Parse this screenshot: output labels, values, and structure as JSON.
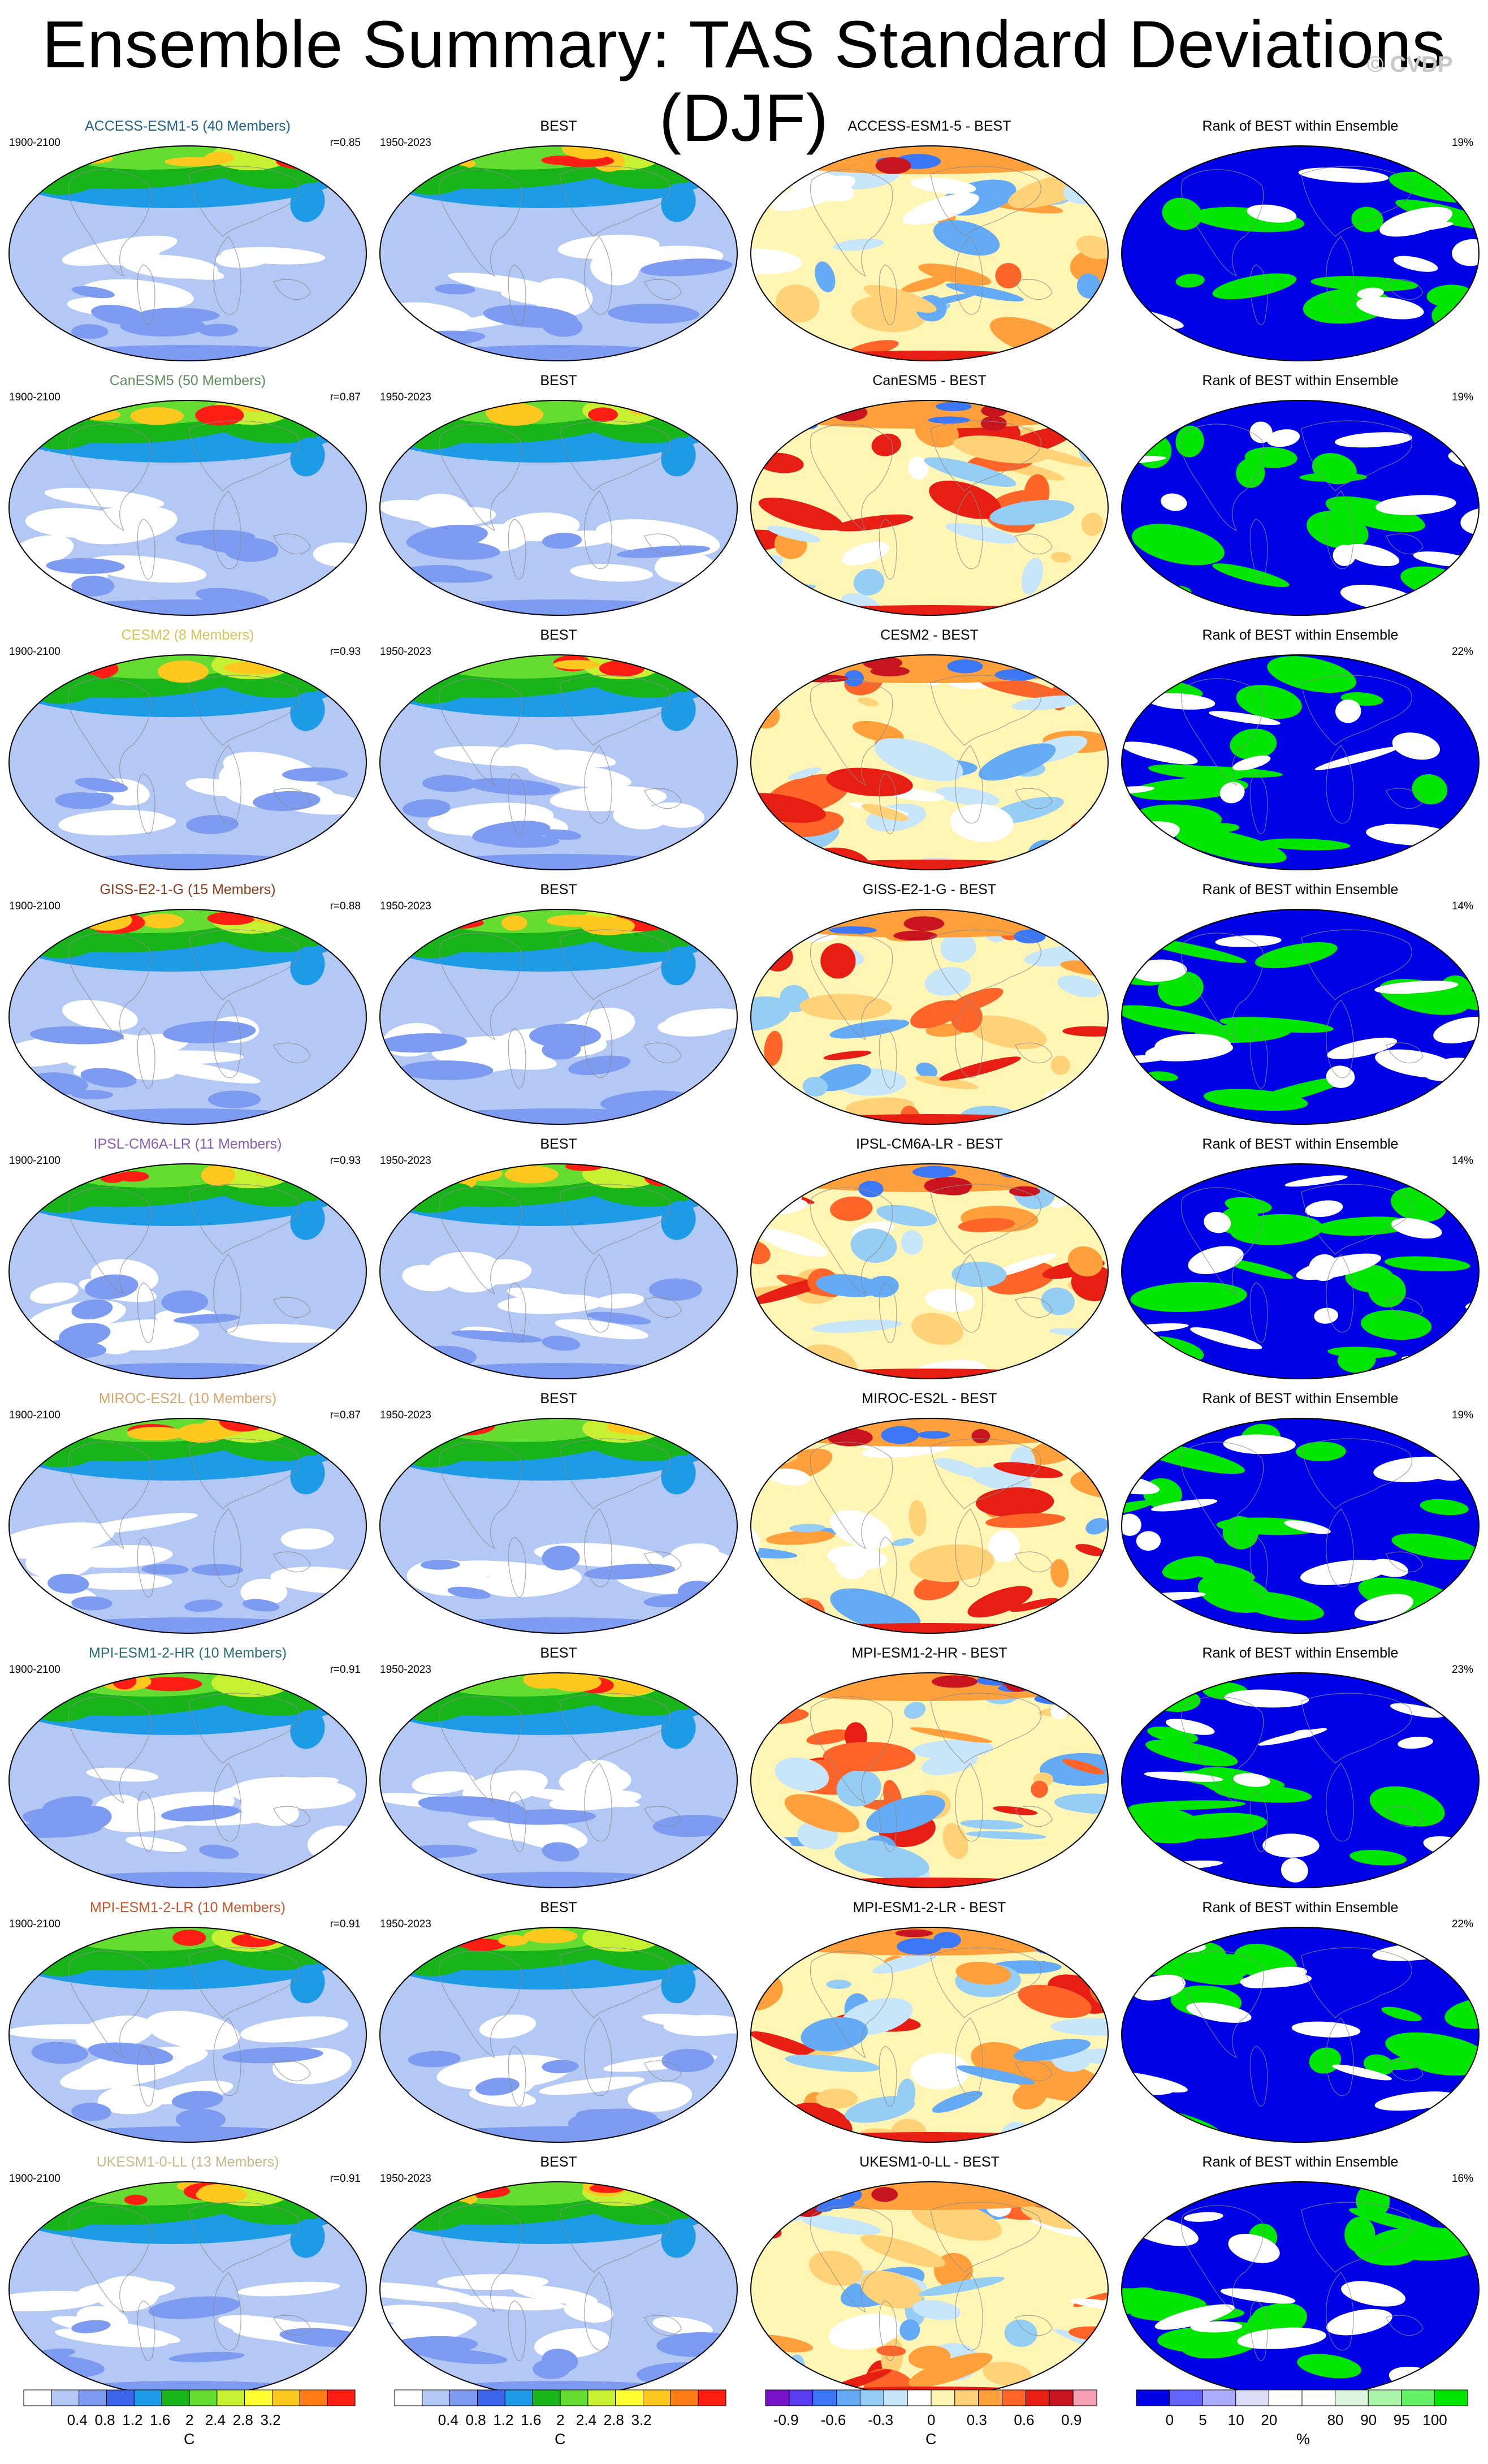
{
  "title": "Ensemble Summary: TAS Standard Deviations (DJF)",
  "copyright": "© CVDP",
  "column_titles": {
    "best": "BEST",
    "rank": "Rank of BEST within Ensemble",
    "diff_suffix": " - BEST"
  },
  "periods": {
    "model": "1900-2100",
    "obs": "1950-2023"
  },
  "rows": [
    {
      "model": "ACCESS-ESM1-5",
      "members": "ACCESS-ESM1-5 (40 Members)",
      "label_color": "#1f5f8b",
      "r": "r=0.85",
      "rank_pct": "19%"
    },
    {
      "model": "CanESM5",
      "members": "CanESM5 (50 Members)",
      "label_color": "#5a8f5a",
      "r": "r=0.87",
      "rank_pct": "19%"
    },
    {
      "model": "CESM2",
      "members": "CESM2 (8 Members)",
      "label_color": "#d6c35a",
      "r": "r=0.93",
      "rank_pct": "22%"
    },
    {
      "model": "GISS-E2-1-G",
      "members": "GISS-E2-1-G (15 Members)",
      "label_color": "#8b3a1a",
      "r": "r=0.88",
      "rank_pct": "14%"
    },
    {
      "model": "IPSL-CM6A-LR",
      "members": "IPSL-CM6A-LR (11 Members)",
      "label_color": "#8a5fb0",
      "r": "r=0.93",
      "rank_pct": "14%"
    },
    {
      "model": "MIROC-ES2L",
      "members": "MIROC-ES2L (10 Members)",
      "label_color": "#d6a36b",
      "r": "r=0.87",
      "rank_pct": "19%"
    },
    {
      "model": "MPI-ESM1-2-HR",
      "members": "MPI-ESM1-2-HR (10 Members)",
      "label_color": "#2e6f6f",
      "r": "r=0.91",
      "rank_pct": "23%"
    },
    {
      "model": "MPI-ESM1-2-LR",
      "members": "MPI-ESM1-2-LR (10 Members)",
      "label_color": "#c8552b",
      "r": "r=0.91",
      "rank_pct": "22%"
    },
    {
      "model": "UKESM1-0-LL",
      "members": "UKESM1-0-LL (13 Members)",
      "label_color": "#c8b98a",
      "r": "r=0.91",
      "rank_pct": "16%"
    }
  ],
  "colorbars": {
    "std": {
      "unit": "C",
      "colors": [
        "#ffffff",
        "#b4c8f5",
        "#7d9bf0",
        "#3c64eb",
        "#1e9be6",
        "#19b419",
        "#64dc32",
        "#c8f032",
        "#ffff32",
        "#ffc81e",
        "#ff7d14",
        "#ff1e14"
      ],
      "labels": [
        "0.4",
        "0.8",
        "1.2",
        "1.6",
        "2",
        "2.4",
        "2.8",
        "3.2"
      ]
    },
    "diff": {
      "unit": "C",
      "colors": [
        "#7814c8",
        "#5a3cf0",
        "#3c78f5",
        "#64aaf5",
        "#96cdf5",
        "#c8e6fa",
        "#ffffff",
        "#fff5b4",
        "#ffd278",
        "#ffa03c",
        "#ff6428",
        "#e61e14",
        "#c8141e",
        "#f5a0b4"
      ],
      "labels": [
        "-0.9",
        "-0.6",
        "-0.3",
        "0",
        "0.3",
        "0.6",
        "0.9"
      ]
    },
    "rank": {
      "unit": "%",
      "colors": [
        "#0000e6",
        "#6464ff",
        "#aaaaff",
        "#dcdcf5",
        "#ffffff",
        "#ffffff",
        "#dcf5dc",
        "#aaf5aa",
        "#64f064",
        "#00e600"
      ],
      "labels": [
        "0",
        "5",
        "10",
        "20",
        "80",
        "90",
        "95",
        "100"
      ]
    }
  }
}
